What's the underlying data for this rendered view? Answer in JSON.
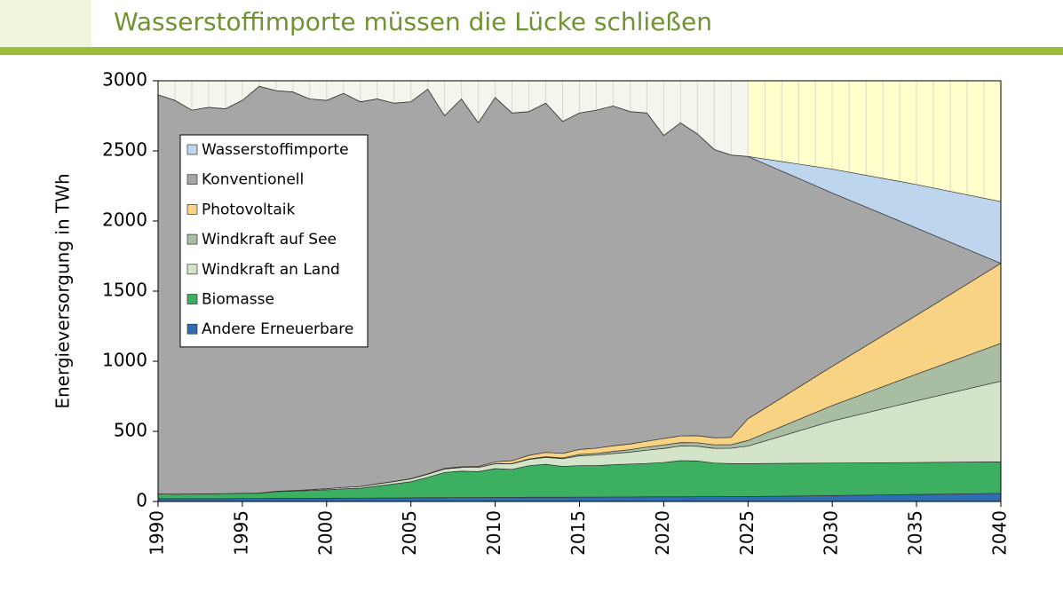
{
  "chart_data": {
    "type": "stacked_area",
    "title": "Wasserstoffimporte müssen die Lücke schließen",
    "ylabel": "Energieversorgung in TWh",
    "x": [
      1990,
      1991,
      1992,
      1993,
      1994,
      1995,
      1996,
      1997,
      1998,
      1999,
      2000,
      2001,
      2002,
      2003,
      2004,
      2005,
      2006,
      2007,
      2008,
      2009,
      2010,
      2011,
      2012,
      2013,
      2014,
      2015,
      2016,
      2017,
      2018,
      2019,
      2020,
      2021,
      2022,
      2023,
      2024,
      2025,
      2030,
      2035,
      2040
    ],
    "xlim": [
      1990,
      2040
    ],
    "xticks": [
      1990,
      1995,
      2000,
      2005,
      2010,
      2015,
      2020,
      2025,
      2030,
      2035,
      2040
    ],
    "ylim": [
      0,
      3000
    ],
    "yticks": [
      0,
      500,
      1000,
      1500,
      2000,
      2500,
      3000
    ],
    "legend": "upper left",
    "series": [
      {
        "name": "Andere Erneuerbare",
        "color": "#2e6db4",
        "values": [
          20,
          20,
          20,
          20,
          20,
          21,
          21,
          22,
          22,
          23,
          23,
          24,
          24,
          25,
          25,
          26,
          27,
          27,
          28,
          28,
          29,
          29,
          30,
          30,
          30,
          31,
          31,
          32,
          32,
          33,
          33,
          33,
          34,
          34,
          35,
          35,
          42,
          50,
          58
        ]
      },
      {
        "name": "Biomasse",
        "color": "#3cb060",
        "values": [
          35,
          32,
          34,
          35,
          36,
          37,
          37,
          48,
          52,
          55,
          60,
          66,
          70,
          85,
          100,
          115,
          145,
          180,
          188,
          185,
          205,
          200,
          225,
          235,
          220,
          225,
          225,
          230,
          235,
          238,
          245,
          258,
          255,
          240,
          235,
          235,
          232,
          228,
          225
        ]
      },
      {
        "name": "Windkraft an Land",
        "color": "#d4e4c8",
        "values": [
          0,
          0,
          0,
          0,
          0,
          1,
          2,
          3,
          4,
          6,
          8,
          11,
          13,
          15,
          17,
          20,
          22,
          25,
          27,
          30,
          35,
          40,
          45,
          50,
          55,
          70,
          75,
          80,
          85,
          95,
          100,
          105,
          105,
          105,
          110,
          125,
          300,
          440,
          575
        ]
      },
      {
        "name": "Windkraft auf See",
        "color": "#a9bda2",
        "values": [
          0,
          0,
          0,
          0,
          0,
          0,
          0,
          0,
          0,
          0,
          0,
          0,
          0,
          0,
          0,
          0,
          0,
          0,
          0,
          0,
          1,
          2,
          3,
          4,
          5,
          10,
          12,
          15,
          18,
          22,
          25,
          24,
          25,
          25,
          25,
          40,
          110,
          190,
          270
        ]
      },
      {
        "name": "Photovoltaik",
        "color": "#f8d384",
        "values": [
          0,
          0,
          0,
          0,
          0,
          0,
          0,
          0,
          0,
          0,
          0,
          0,
          0,
          1,
          1,
          2,
          3,
          4,
          5,
          7,
          12,
          20,
          26,
          31,
          33,
          35,
          37,
          40,
          40,
          42,
          46,
          48,
          50,
          50,
          52,
          155,
          280,
          420,
          570
        ]
      },
      {
        "name": "Konventionell",
        "color": "#a6a6a6",
        "values": [
          2845,
          2808,
          2736,
          2755,
          2744,
          2801,
          2900,
          2857,
          2842,
          2786,
          2769,
          2809,
          2743,
          2744,
          2697,
          2687,
          2743,
          2514,
          2622,
          2450,
          2598,
          2479,
          2451,
          2490,
          2367,
          2399,
          2410,
          2423,
          2370,
          2340,
          2161,
          2232,
          2151,
          2056,
          2013,
          1870,
          1236,
          622,
          0
        ]
      },
      {
        "name": "Wasserstoffimporte",
        "color": "#bdd6ee",
        "values": [
          0,
          0,
          0,
          0,
          0,
          0,
          0,
          0,
          0,
          0,
          0,
          0,
          0,
          0,
          0,
          0,
          0,
          0,
          0,
          0,
          0,
          0,
          0,
          0,
          0,
          0,
          0,
          0,
          0,
          0,
          0,
          0,
          0,
          0,
          0,
          0,
          170,
          310,
          440
        ]
      }
    ]
  }
}
